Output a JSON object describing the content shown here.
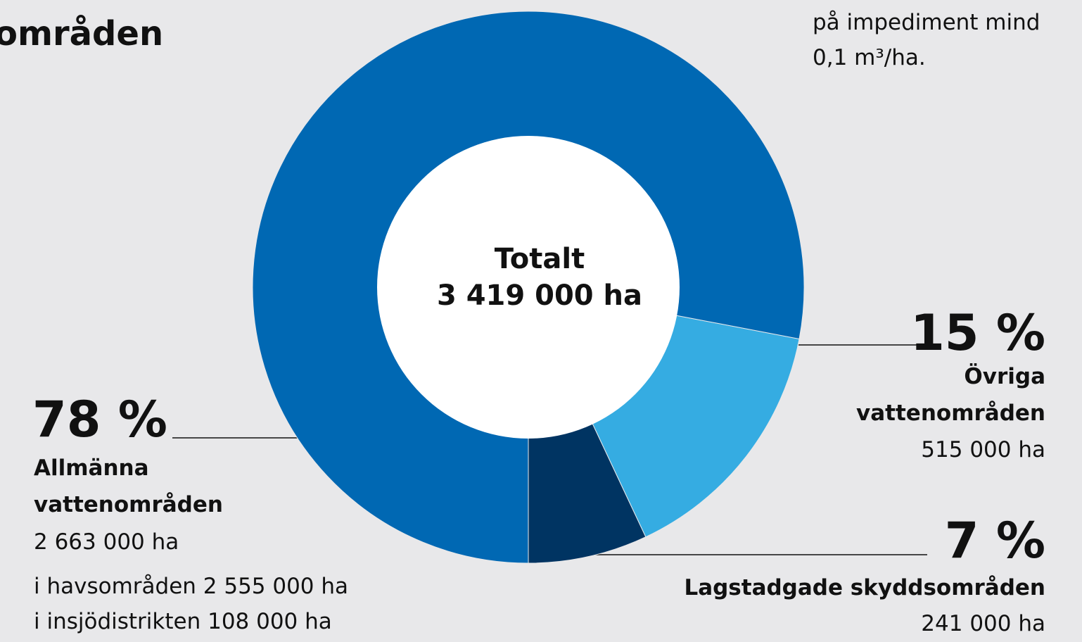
{
  "chart_data": {
    "type": "pie",
    "title": "områden",
    "notes": [
      "på impediment mind",
      "0,1 m³/ha."
    ],
    "center_label": [
      "Totalt",
      "3 419 000 ha"
    ],
    "categories": [
      "Allmänna vattenområden",
      "Övriga vattenområden",
      "Lagstadgade skyddsområden"
    ],
    "values": [
      78,
      15,
      7
    ],
    "value_labels": [
      "78 %",
      "15 %",
      "7 %"
    ],
    "areas": [
      "2 663 000 ha",
      "515 000 ha",
      "241 000 ha"
    ],
    "details": [
      "i havsområden 2 555 000 ha",
      "i insjödistrikten 108 000 ha"
    ],
    "colors": [
      "#0068b3",
      "#35ace2",
      "#003462"
    ]
  }
}
